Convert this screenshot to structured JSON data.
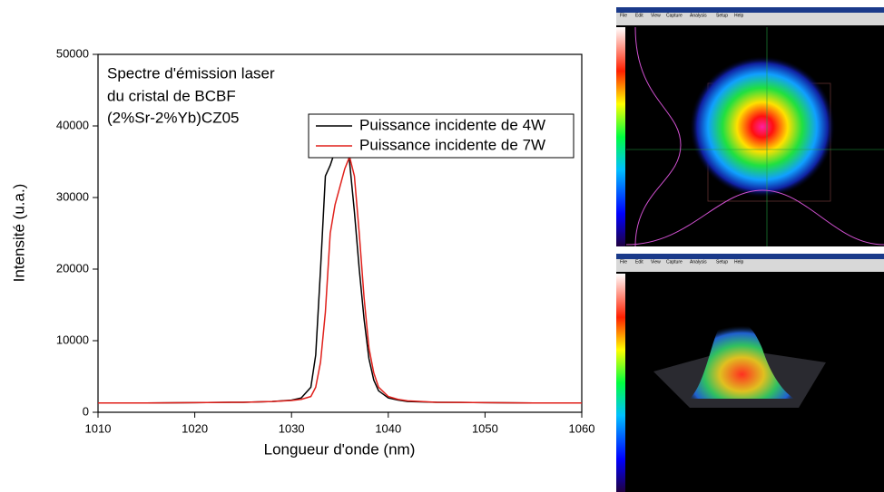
{
  "chart_data": {
    "type": "line",
    "annotation": [
      "Spectre d'émission laser",
      "du cristal de BCBF",
      "(2%Sr-2%Yb)CZ05"
    ],
    "x_label": "Longueur d'onde (nm)",
    "y_label": "Intensité (u.a.)",
    "x": [
      1010,
      1015,
      1020,
      1025,
      1028,
      1030,
      1031,
      1032,
      1032.5,
      1033,
      1033.5,
      1034,
      1034.5,
      1035,
      1035.5,
      1036,
      1036.5,
      1037,
      1037.5,
      1038,
      1038.5,
      1039,
      1040,
      1041,
      1042,
      1045,
      1050,
      1055,
      1060
    ],
    "series": [
      {
        "name": "Puissance incidente de 4W",
        "color": "#000000",
        "values": [
          1300,
          1300,
          1350,
          1400,
          1500,
          1700,
          2000,
          3500,
          8000,
          20000,
          33000,
          34500,
          36500,
          38200,
          38000,
          35000,
          28000,
          20000,
          13000,
          7500,
          4500,
          3000,
          2000,
          1700,
          1500,
          1400,
          1350,
          1300,
          1300
        ]
      },
      {
        "name": "Puissance incidente de 7W",
        "color": "#e0201b",
        "values": [
          1300,
          1300,
          1350,
          1400,
          1500,
          1650,
          1800,
          2200,
          3500,
          7000,
          14000,
          25000,
          29000,
          31500,
          34000,
          35700,
          33000,
          25000,
          16000,
          9000,
          5500,
          3500,
          2200,
          1800,
          1600,
          1400,
          1350,
          1300,
          1300
        ]
      }
    ],
    "xlim": [
      1010,
      1060
    ],
    "xticks": [
      1010,
      1020,
      1030,
      1040,
      1050,
      1060
    ],
    "ylim": [
      0,
      50000
    ],
    "yticks": [
      0,
      10000,
      20000,
      30000,
      40000,
      50000
    ],
    "legend": "upper right"
  },
  "screenshots": {
    "menu": [
      "File",
      "Edit",
      "View",
      "Capture",
      "Analysis",
      "Setup",
      "Help"
    ]
  }
}
